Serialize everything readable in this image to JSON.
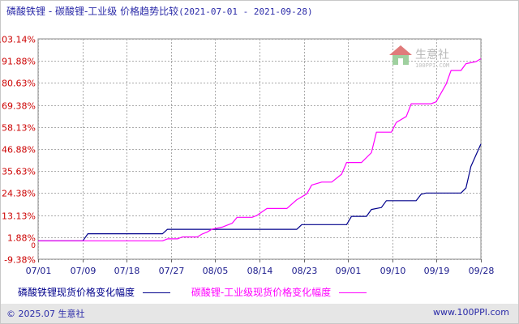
{
  "title": {
    "main": "磷酸铁锂 - 碳酸锂-工业级 价格趋势比较",
    "range": "(2021-07-01 - 2021-09-28)"
  },
  "watermark": {
    "text": "生意社",
    "sub": "100PPI.COM"
  },
  "footer": {
    "copyright": "© 2025.07 生意社",
    "site": "www.100PPI.com"
  },
  "colors": {
    "series1": "#00008b",
    "series2": "#ff00ff",
    "grid": "#aaaaaa",
    "ytick": "#cc0000",
    "xtick": "#1a1a8c"
  },
  "chart_data": {
    "type": "line",
    "x_ticks": [
      "07/01",
      "07/09",
      "07/18",
      "07/27",
      "08/05",
      "08/14",
      "08/23",
      "09/01",
      "09/10",
      "09/19",
      "09/28"
    ],
    "y_ticks": [
      "103.14%",
      "91.88%",
      "80.63%",
      "69.38%",
      "58.13%",
      "46.88%",
      "35.63%",
      "24.38%",
      "13.13%",
      "1.88%",
      "-9.38%"
    ],
    "y_tick_values": [
      103.14,
      91.88,
      80.63,
      69.38,
      58.13,
      46.88,
      35.63,
      24.38,
      13.13,
      1.88,
      -9.38
    ],
    "y_axis_zero_label": "0",
    "ylim": [
      -9.38,
      103.14
    ],
    "xlim": [
      "2021-07-01",
      "2021-09-28"
    ],
    "grid": true,
    "legend_position": "bottom",
    "series": [
      {
        "name": "磷酸铁锂现货价格变化幅度",
        "points": [
          [
            "2021-07-01",
            0
          ],
          [
            "2021-07-10",
            0
          ],
          [
            "2021-07-11",
            3.6
          ],
          [
            "2021-07-19",
            3.6
          ],
          [
            "2021-07-20",
            3.6
          ],
          [
            "2021-07-26",
            3.6
          ],
          [
            "2021-07-27",
            5.9
          ],
          [
            "2021-08-16",
            5.9
          ],
          [
            "2021-08-22",
            5.9
          ],
          [
            "2021-08-23",
            8.3
          ],
          [
            "2021-09-01",
            8.3
          ],
          [
            "2021-09-02",
            12.5
          ],
          [
            "2021-09-05",
            12.5
          ],
          [
            "2021-09-06",
            16.0
          ],
          [
            "2021-09-08",
            17.0
          ],
          [
            "2021-09-09",
            20.5
          ],
          [
            "2021-09-15",
            20.5
          ],
          [
            "2021-09-16",
            23.8
          ],
          [
            "2021-09-17",
            24.4
          ],
          [
            "2021-09-24",
            24.4
          ],
          [
            "2021-09-25",
            27.0
          ],
          [
            "2021-09-26",
            38.0
          ],
          [
            "2021-09-28",
            49.5
          ]
        ]
      },
      {
        "name": "碳酸锂-工业级现货价格变化幅度",
        "points": [
          [
            "2021-07-01",
            0
          ],
          [
            "2021-07-15",
            0
          ],
          [
            "2021-07-26",
            0
          ],
          [
            "2021-07-27",
            1.0
          ],
          [
            "2021-07-29",
            1.0
          ],
          [
            "2021-07-30",
            2.0
          ],
          [
            "2021-08-02",
            2.0
          ],
          [
            "2021-08-03",
            3.5
          ],
          [
            "2021-08-04",
            4.5
          ],
          [
            "2021-08-05",
            6.0
          ],
          [
            "2021-08-07",
            7.0
          ],
          [
            "2021-08-09",
            9.0
          ],
          [
            "2021-08-10",
            12.0
          ],
          [
            "2021-08-13",
            12.0
          ],
          [
            "2021-08-14",
            13.0
          ],
          [
            "2021-08-16",
            16.5
          ],
          [
            "2021-08-20",
            16.5
          ],
          [
            "2021-08-22",
            21.0
          ],
          [
            "2021-08-24",
            24.0
          ],
          [
            "2021-08-25",
            28.5
          ],
          [
            "2021-08-27",
            30.0
          ],
          [
            "2021-08-29",
            30.0
          ],
          [
            "2021-08-31",
            34.0
          ],
          [
            "2021-09-01",
            40.0
          ],
          [
            "2021-09-04",
            40.0
          ],
          [
            "2021-09-06",
            45.0
          ],
          [
            "2021-09-07",
            55.5
          ],
          [
            "2021-09-10",
            55.5
          ],
          [
            "2021-09-11",
            60.5
          ],
          [
            "2021-09-13",
            63.5
          ],
          [
            "2021-09-14",
            70.0
          ],
          [
            "2021-09-18",
            70.0
          ],
          [
            "2021-09-19",
            71.0
          ],
          [
            "2021-09-21",
            80.0
          ],
          [
            "2021-09-22",
            87.0
          ],
          [
            "2021-09-24",
            87.0
          ],
          [
            "2021-09-25",
            90.5
          ],
          [
            "2021-09-27",
            91.5
          ],
          [
            "2021-09-28",
            93.0
          ]
        ]
      }
    ]
  }
}
